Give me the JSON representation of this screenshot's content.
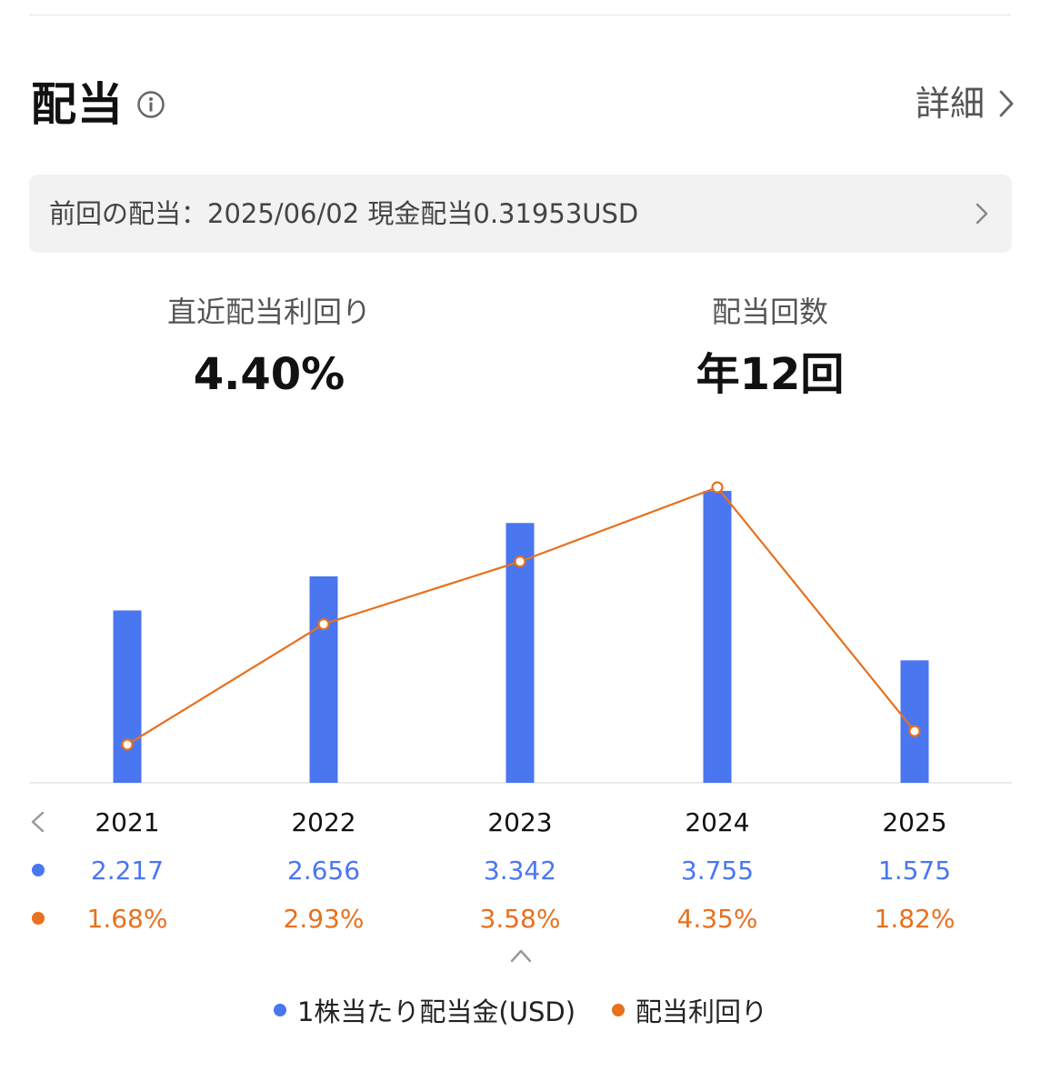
{
  "header": {
    "title": "配当",
    "detail_label": "詳細"
  },
  "last_dividend": {
    "text": "前回の配当：2025/06/02 現金配当0.31953USD"
  },
  "kpis": {
    "yield_label": "直近配当利回り",
    "yield_value": "4.40%",
    "count_label": "配当回数",
    "count_value": "年12回"
  },
  "colors": {
    "bar": "#4a76f0",
    "line": "#e8701e"
  },
  "chart_data": {
    "type": "bar",
    "categories": [
      "2021",
      "2022",
      "2023",
      "2024",
      "2025"
    ],
    "series": [
      {
        "name": "1株当たり配当金(USD)",
        "type": "bar",
        "values": [
          2.217,
          2.656,
          3.342,
          3.755,
          1.575
        ],
        "labels": [
          "2.217",
          "2.656",
          "3.342",
          "3.755",
          "1.575"
        ]
      },
      {
        "name": "配当利回り",
        "type": "line",
        "values": [
          1.68,
          2.93,
          3.58,
          4.35,
          1.82
        ],
        "labels": [
          "1.68%",
          "2.93%",
          "3.58%",
          "4.35%",
          "1.82%"
        ]
      }
    ],
    "legend_position": "bottom"
  }
}
